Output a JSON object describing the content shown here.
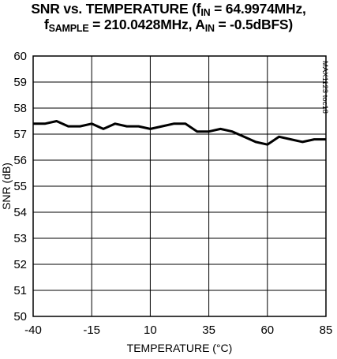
{
  "title": {
    "line1_a": "SNR vs. TEMPERATURE (f",
    "line1_sub": "IN",
    "line1_b": " = 64.9974MHz,",
    "line2_a": "f",
    "line2_sub": "SAMPLE",
    "line2_b": " = 210.0428MHz, A",
    "line2_sub2": "IN",
    "line2_c": " = -0.5dBFS)"
  },
  "side_code": "MAX1123 toc18",
  "chart_data": {
    "type": "line",
    "xlabel": "TEMPERATURE (°C)",
    "ylabel": "SNR (dB)",
    "xlim": [
      -40,
      85
    ],
    "ylim": [
      50,
      60
    ],
    "x_ticks": [
      "-40",
      "-15",
      "10",
      "35",
      "60",
      "85"
    ],
    "y_ticks": [
      "50",
      "51",
      "52",
      "53",
      "54",
      "55",
      "56",
      "57",
      "58",
      "59",
      "60"
    ],
    "grid": true,
    "series": [
      {
        "x": [
          -40,
          -35,
          -30,
          -25,
          -20,
          -15,
          -10,
          -5,
          0,
          5,
          10,
          15,
          20,
          25,
          30,
          35,
          40,
          45,
          50,
          55,
          60,
          65,
          70,
          75,
          80,
          85
        ],
        "y": [
          57.4,
          57.4,
          57.5,
          57.3,
          57.3,
          57.4,
          57.2,
          57.4,
          57.3,
          57.3,
          57.2,
          57.3,
          57.4,
          57.4,
          57.1,
          57.1,
          57.2,
          57.1,
          56.9,
          56.7,
          56.6,
          56.9,
          56.8,
          56.7,
          56.8,
          56.8
        ]
      }
    ]
  }
}
